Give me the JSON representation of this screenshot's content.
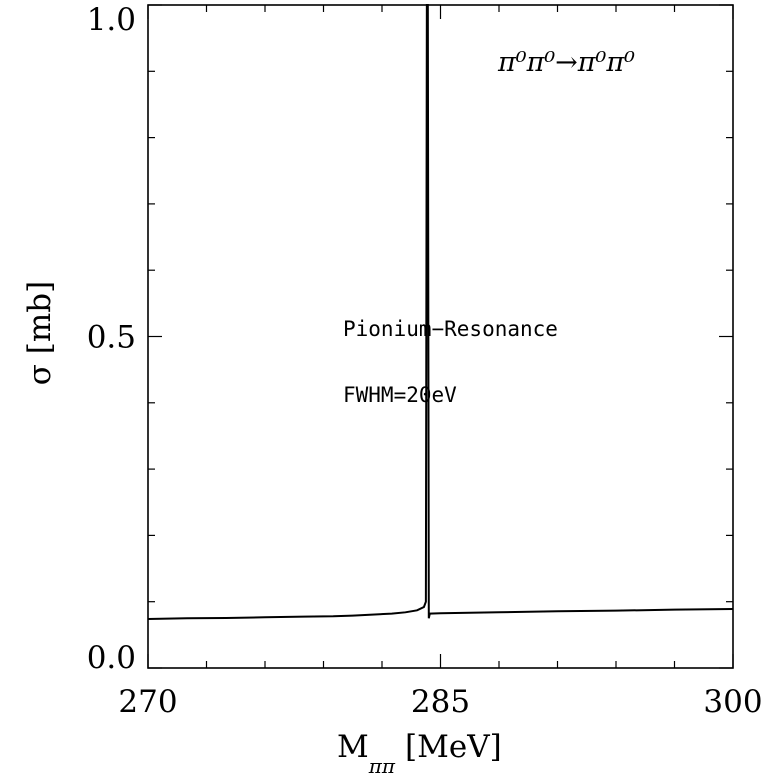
{
  "chart_data": {
    "type": "line",
    "title": "",
    "xlabel": "M",
    "xlabel_subscript": "ππ",
    "xlabel_unit": "[MeV]",
    "ylabel": "σ [mb]",
    "xlim": [
      270,
      300
    ],
    "ylim": [
      0.0,
      1.0
    ],
    "x_major_ticks": [
      270,
      285,
      300
    ],
    "x_major_tick_labels": [
      "270",
      "285",
      "300"
    ],
    "x_minor_ticks": [
      273,
      276,
      279,
      282,
      288,
      291,
      294,
      297
    ],
    "y_major_ticks": [
      0.0,
      0.5,
      1.0
    ],
    "y_major_tick_labels": [
      "0.0",
      "0.5",
      "1.0"
    ],
    "y_minor_ticks": [
      0.1,
      0.2,
      0.3,
      0.4,
      0.6,
      0.7,
      0.8,
      0.9
    ],
    "grid": false,
    "annotations": {
      "reaction": "π⁰π⁰→π⁰π⁰",
      "resonance_label": "Pionium−Resonance",
      "fwhm_label": "FWHM=20eV"
    },
    "series": [
      {
        "x": [
          270,
          272,
          274,
          276,
          278,
          279.5,
          280.5,
          281.5,
          282.5,
          283.2,
          283.8,
          284.15,
          284.25,
          284.3,
          284.35,
          284.4,
          284.45,
          285,
          288,
          291,
          294,
          297,
          300
        ],
        "y": [
          0.074,
          0.075,
          0.0755,
          0.0765,
          0.0775,
          0.078,
          0.079,
          0.0805,
          0.082,
          0.084,
          0.087,
          0.092,
          0.1,
          1.0,
          1.0,
          0.075,
          0.082,
          0.0825,
          0.084,
          0.0855,
          0.0865,
          0.088,
          0.089
        ]
      }
    ]
  }
}
